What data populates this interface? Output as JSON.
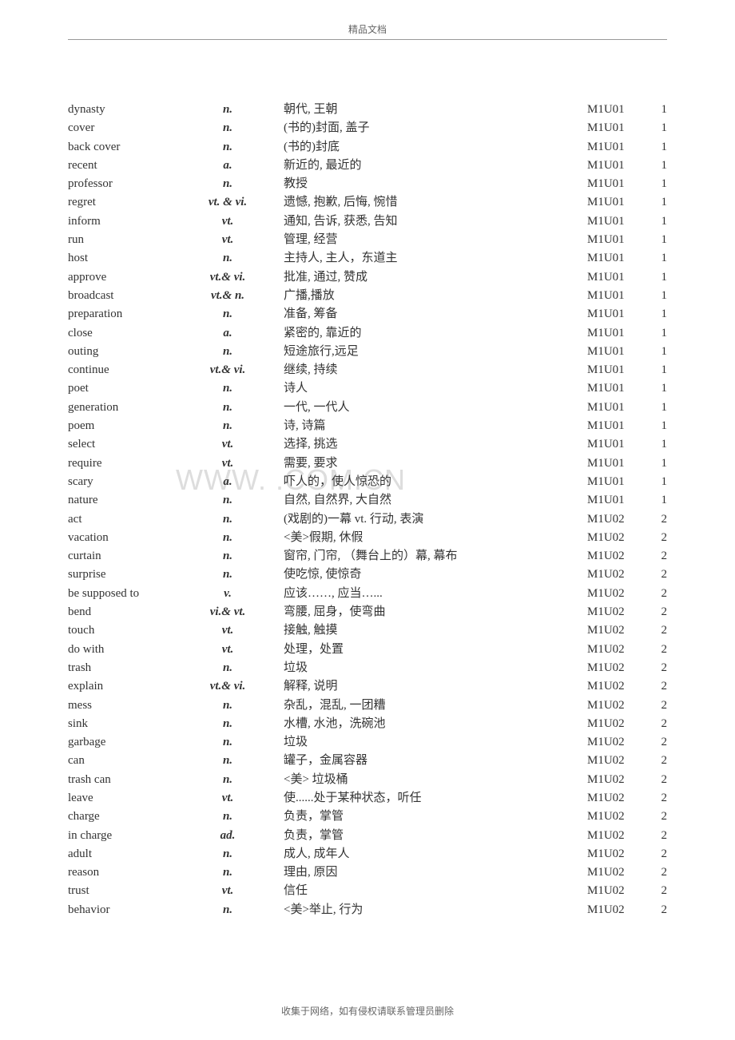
{
  "header": {
    "text": "精品文档"
  },
  "footer": {
    "text": "收集于网络，如有侵权请联系管理员删除"
  },
  "watermark": {
    "text": "WWW.    .COM.CN"
  },
  "vocabulary": {
    "rows": [
      {
        "word": "dynasty",
        "pos": "n.",
        "def": "朝代, 王朝",
        "unit": "M1U01",
        "num": "1"
      },
      {
        "word": "cover",
        "pos": "n.",
        "def": "(书的)封面, 盖子",
        "unit": "M1U01",
        "num": "1"
      },
      {
        "word": "back cover",
        "pos": "n.",
        "def": "(书的)封底",
        "unit": "M1U01",
        "num": "1"
      },
      {
        "word": "recent",
        "pos": "a.",
        "def": "新近的, 最近的",
        "unit": "M1U01",
        "num": "1"
      },
      {
        "word": "professor",
        "pos": "n.",
        "def": "教授",
        "unit": "M1U01",
        "num": "1"
      },
      {
        "word": "regret",
        "pos": "vt. & vi.",
        "def": "遗憾, 抱歉, 后悔, 惋惜",
        "unit": "M1U01",
        "num": "1"
      },
      {
        "word": "inform",
        "pos": "vt.",
        "def": "通知, 告诉, 获悉, 告知",
        "unit": "M1U01",
        "num": "1"
      },
      {
        "word": "run",
        "pos": "vt.",
        "def": "管理,  经营",
        "unit": "M1U01",
        "num": "1"
      },
      {
        "word": "host",
        "pos": "n.",
        "def": "主持人, 主人，东道主",
        "unit": "M1U01",
        "num": "1"
      },
      {
        "word": "approve",
        "pos": "vt.& vi.",
        "def": "批准, 通过, 赞成",
        "unit": "M1U01",
        "num": "1"
      },
      {
        "word": "broadcast",
        "pos": "vt.& n.",
        "def": "广播,播放",
        "unit": "M1U01",
        "num": "1"
      },
      {
        "word": "preparation",
        "pos": "n.",
        "def": "准备, 筹备",
        "unit": "M1U01",
        "num": "1"
      },
      {
        "word": "close",
        "pos": "a.",
        "def": "紧密的, 靠近的",
        "unit": "M1U01",
        "num": "1"
      },
      {
        "word": "outing",
        "pos": "n.",
        "def": "短途旅行,远足",
        "unit": "M1U01",
        "num": "1"
      },
      {
        "word": "continue",
        "pos": "vt.& vi.",
        "def": "继续, 持续",
        "unit": "M1U01",
        "num": "1"
      },
      {
        "word": "poet",
        "pos": "n.",
        "def": "诗人",
        "unit": "M1U01",
        "num": "1"
      },
      {
        "word": "generation",
        "pos": "n.",
        "def": "一代, 一代人",
        "unit": "M1U01",
        "num": "1"
      },
      {
        "word": "poem",
        "pos": "n.",
        "def": "诗, 诗篇",
        "unit": "M1U01",
        "num": "1"
      },
      {
        "word": "select",
        "pos": "vt.",
        "def": "选择, 挑选",
        "unit": "M1U01",
        "num": "1"
      },
      {
        "word": "require",
        "pos": "vt.",
        "def": "需要, 要求",
        "unit": "M1U01",
        "num": "1"
      },
      {
        "word": "scary",
        "pos": "a.",
        "def": "吓人的，使人惊恐的",
        "unit": "M1U01",
        "num": "1"
      },
      {
        "word": "nature",
        "pos": "n.",
        "def": "自然, 自然界, 大自然",
        "unit": "M1U01",
        "num": "1"
      },
      {
        "word": "act",
        "pos": "n.",
        "def": " (戏剧的)一幕 vt. 行动,  表演",
        "unit": "M1U02",
        "num": "2"
      },
      {
        "word": "vacation",
        "pos": "n.",
        "def": " <美>假期, 休假",
        "unit": "M1U02",
        "num": "2"
      },
      {
        "word": "curtain",
        "pos": "n.",
        "def": " 窗帘, 门帘, （舞台上的）幕, 幕布",
        "unit": "M1U02",
        "num": "2"
      },
      {
        "word": "surprise",
        "pos": "n.",
        "def": " 使吃惊, 使惊奇",
        "unit": "M1U02",
        "num": "2"
      },
      {
        "word": "be supposed to",
        "pos": "v.",
        "def": " 应该……, 应当…...",
        "unit": "M1U02",
        "num": "2"
      },
      {
        "word": "bend",
        "pos": "vi.& vt.",
        "def": " 弯腰, 屈身，使弯曲",
        "unit": "M1U02",
        "num": "2"
      },
      {
        "word": "touch",
        "pos": "vt.",
        "def": " 接触, 触摸",
        "unit": "M1U02",
        "num": "2"
      },
      {
        "word": "do with",
        "pos": "vt.",
        "def": " 处理，处置",
        "unit": "M1U02",
        "num": "2"
      },
      {
        "word": "trash",
        "pos": "n.",
        "def": " 垃圾",
        "unit": "M1U02",
        "num": "2"
      },
      {
        "word": "explain",
        "pos": "vt.& vi.",
        "def": " 解释, 说明",
        "unit": "M1U02",
        "num": "2"
      },
      {
        "word": "mess",
        "pos": "n.",
        "def": " 杂乱，混乱, 一团糟",
        "unit": "M1U02",
        "num": "2"
      },
      {
        "word": "sink",
        "pos": "n.",
        "def": " 水槽, 水池，洗碗池",
        "unit": "M1U02",
        "num": "2"
      },
      {
        "word": "garbage",
        "pos": "n.",
        "def": " 垃圾",
        "unit": "M1U02",
        "num": "2"
      },
      {
        "word": "can",
        "pos": "n.",
        "def": " 罐子，金属容器",
        "unit": "M1U02",
        "num": "2"
      },
      {
        "word": "trash can",
        "pos": "n.",
        "def": " <美> 垃圾桶",
        "unit": "M1U02",
        "num": "2"
      },
      {
        "word": "leave",
        "pos": "vt.",
        "def": " 使......处于某种状态，听任",
        "unit": "M1U02",
        "num": "2"
      },
      {
        "word": "charge",
        "pos": "n.",
        "def": " 负责，掌管",
        "unit": "M1U02",
        "num": "2"
      },
      {
        "word": "in charge",
        "pos": "ad.",
        "def": " 负责，掌管",
        "unit": "M1U02",
        "num": "2"
      },
      {
        "word": "adult",
        "pos": "n.",
        "def": " 成人, 成年人",
        "unit": "M1U02",
        "num": "2"
      },
      {
        "word": "reason",
        "pos": "n.",
        "def": " 理由, 原因",
        "unit": "M1U02",
        "num": "2"
      },
      {
        "word": "trust",
        "pos": "vt.",
        "def": " 信任",
        "unit": "M1U02",
        "num": "2"
      },
      {
        "word": "behavior",
        "pos": "n.",
        "def": " <美>举止, 行为",
        "unit": "M1U02",
        "num": "2"
      }
    ]
  }
}
